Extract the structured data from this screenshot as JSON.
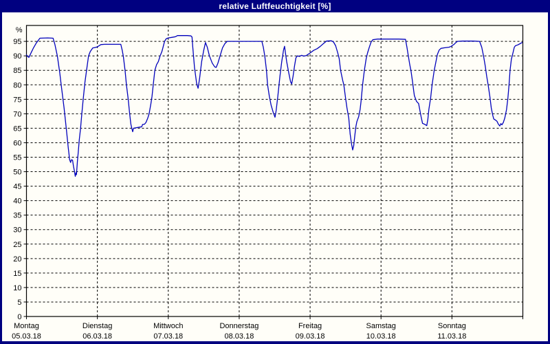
{
  "window": {
    "title": "relative Luftfeuchtigkeit [%]"
  },
  "colors": {
    "titlebar_bg": "#000080",
    "titlebar_text": "#ffffff",
    "window_border": "#000080",
    "content_bg": "#fffef8",
    "plot_border": "#000000",
    "gridline": "#000000",
    "series_line": "#0000bb"
  },
  "chart_data": {
    "type": "line",
    "title": "relative Luftfeuchtigkeit [%]",
    "ylabel": "%",
    "xlabel": "",
    "grid": "dashed",
    "legend": "none",
    "y_range": [
      0,
      100.5
    ],
    "y_tick_step": 5,
    "y_tick_labels": [
      "0",
      "5",
      "10",
      "15",
      "20",
      "25",
      "30",
      "35",
      "40",
      "45",
      "50",
      "55",
      "60",
      "65",
      "70",
      "75",
      "80",
      "85",
      "90",
      "95"
    ],
    "x_range_days": [
      0,
      7
    ],
    "x_axis": {
      "ticks": [
        {
          "day": "Montag",
          "date": "05.03.18"
        },
        {
          "day": "Dienstag",
          "date": "06.03.18"
        },
        {
          "day": "Mittwoch",
          "date": "07.03.18"
        },
        {
          "day": "Donnerstag",
          "date": "08.03.18"
        },
        {
          "day": "Freitag",
          "date": "09.03.18"
        },
        {
          "day": "Samstag",
          "date": "10.03.18"
        },
        {
          "day": "Sonntag",
          "date": "11.03.18"
        }
      ]
    },
    "series": [
      {
        "name": "relative Luftfeuchtigkeit",
        "unit": "%",
        "points": [
          [
            0.0,
            90.3
          ],
          [
            0.02,
            89.7
          ],
          [
            0.035,
            89.5
          ],
          [
            0.06,
            90.8
          ],
          [
            0.1,
            92.8
          ],
          [
            0.14,
            94.5
          ],
          [
            0.19,
            96.1
          ],
          [
            0.3,
            96.2
          ],
          [
            0.375,
            96.1
          ],
          [
            0.4,
            94
          ],
          [
            0.435,
            90
          ],
          [
            0.47,
            84
          ],
          [
            0.49,
            80
          ],
          [
            0.53,
            72
          ],
          [
            0.565,
            64
          ],
          [
            0.59,
            58
          ],
          [
            0.6,
            56
          ],
          [
            0.607,
            54.3
          ],
          [
            0.622,
            53.2
          ],
          [
            0.633,
            54.1
          ],
          [
            0.65,
            54.0
          ],
          [
            0.662,
            52
          ],
          [
            0.675,
            50.4
          ],
          [
            0.688,
            48.4
          ],
          [
            0.698,
            49.6
          ],
          [
            0.705,
            49.0
          ],
          [
            0.718,
            53.6
          ],
          [
            0.73,
            56.7
          ],
          [
            0.745,
            61
          ],
          [
            0.762,
            64.8
          ],
          [
            0.78,
            70
          ],
          [
            0.8,
            75
          ],
          [
            0.825,
            81
          ],
          [
            0.85,
            85.5
          ],
          [
            0.875,
            90
          ],
          [
            0.9,
            91.5
          ],
          [
            0.935,
            92.7
          ],
          [
            0.97,
            92.9
          ],
          [
            1.0,
            93.1
          ],
          [
            1.05,
            93.9
          ],
          [
            1.1,
            94.0
          ],
          [
            1.25,
            94.0
          ],
          [
            1.33,
            94.0
          ],
          [
            1.35,
            92
          ],
          [
            1.365,
            90
          ],
          [
            1.39,
            85
          ],
          [
            1.41,
            80
          ],
          [
            1.435,
            75
          ],
          [
            1.455,
            70
          ],
          [
            1.472,
            66.5
          ],
          [
            1.485,
            65.0
          ],
          [
            1.498,
            63.8
          ],
          [
            1.51,
            65.0
          ],
          [
            1.55,
            65.2
          ],
          [
            1.6,
            65.4
          ],
          [
            1.625,
            65.5
          ],
          [
            1.638,
            66.3
          ],
          [
            1.665,
            66.4
          ],
          [
            1.685,
            67.0
          ],
          [
            1.71,
            68.5
          ],
          [
            1.73,
            70
          ],
          [
            1.755,
            73.5
          ],
          [
            1.77,
            76
          ],
          [
            1.788,
            80
          ],
          [
            1.81,
            85
          ],
          [
            1.835,
            87
          ],
          [
            1.86,
            88
          ],
          [
            1.885,
            90
          ],
          [
            1.91,
            91.5
          ],
          [
            1.93,
            93.4
          ],
          [
            1.948,
            95
          ],
          [
            1.97,
            95.9
          ],
          [
            2.0,
            96.2
          ],
          [
            2.05,
            96.4
          ],
          [
            2.1,
            96.6
          ],
          [
            2.13,
            97.0
          ],
          [
            2.27,
            97.0
          ],
          [
            2.32,
            96.9
          ],
          [
            2.335,
            96.5
          ],
          [
            2.345,
            93
          ],
          [
            2.37,
            86
          ],
          [
            2.4,
            80.5
          ],
          [
            2.42,
            78.8
          ],
          [
            2.44,
            82
          ],
          [
            2.47,
            88
          ],
          [
            2.5,
            92
          ],
          [
            2.525,
            94.6
          ],
          [
            2.55,
            93
          ],
          [
            2.58,
            90
          ],
          [
            2.62,
            87.5
          ],
          [
            2.655,
            86.2
          ],
          [
            2.675,
            86.0
          ],
          [
            2.7,
            87.5
          ],
          [
            2.73,
            90
          ],
          [
            2.765,
            92.8
          ],
          [
            2.8,
            94.3
          ],
          [
            2.83,
            95.0
          ],
          [
            2.9,
            95.0
          ],
          [
            3.0,
            95.0
          ],
          [
            3.15,
            95.0
          ],
          [
            3.32,
            95.0
          ],
          [
            3.34,
            93
          ],
          [
            3.36,
            90
          ],
          [
            3.385,
            85
          ],
          [
            3.4,
            80
          ],
          [
            3.425,
            76
          ],
          [
            3.45,
            73
          ],
          [
            3.48,
            70.5
          ],
          [
            3.505,
            68.8
          ],
          [
            3.52,
            71
          ],
          [
            3.545,
            76
          ],
          [
            3.575,
            83
          ],
          [
            3.6,
            88
          ],
          [
            3.625,
            92
          ],
          [
            3.64,
            93.3
          ],
          [
            3.655,
            90.5
          ],
          [
            3.67,
            88
          ],
          [
            3.7,
            84
          ],
          [
            3.725,
            81
          ],
          [
            3.74,
            80.3
          ],
          [
            3.76,
            83
          ],
          [
            3.78,
            86.5
          ],
          [
            3.8,
            89.3
          ],
          [
            3.82,
            90.0
          ],
          [
            3.85,
            89.8
          ],
          [
            3.88,
            90.2
          ],
          [
            3.91,
            89.9
          ],
          [
            3.945,
            90.1
          ],
          [
            3.97,
            90.5
          ],
          [
            4.0,
            91.0
          ],
          [
            4.05,
            91.9
          ],
          [
            4.1,
            92.5
          ],
          [
            4.14,
            93.2
          ],
          [
            4.19,
            94.3
          ],
          [
            4.23,
            95.1
          ],
          [
            4.3,
            95.2
          ],
          [
            4.33,
            94.8
          ],
          [
            4.36,
            93.5
          ],
          [
            4.39,
            91
          ],
          [
            4.41,
            89
          ],
          [
            4.43,
            85
          ],
          [
            4.46,
            81.5
          ],
          [
            4.475,
            80
          ],
          [
            4.5,
            75.5
          ],
          [
            4.52,
            72
          ],
          [
            4.545,
            68.5
          ],
          [
            4.565,
            63
          ],
          [
            4.585,
            59.5
          ],
          [
            4.6,
            57.5
          ],
          [
            4.615,
            59
          ],
          [
            4.63,
            62.5
          ],
          [
            4.645,
            65.5
          ],
          [
            4.66,
            67.3
          ],
          [
            4.685,
            69
          ],
          [
            4.705,
            71.5
          ],
          [
            4.72,
            74.6
          ],
          [
            4.74,
            80
          ],
          [
            4.765,
            85
          ],
          [
            4.79,
            89
          ],
          [
            4.81,
            91
          ],
          [
            4.835,
            93
          ],
          [
            4.86,
            94.8
          ],
          [
            4.885,
            95.6
          ],
          [
            4.95,
            95.8
          ],
          [
            5.0,
            95.8
          ],
          [
            5.1,
            95.8
          ],
          [
            5.25,
            95.8
          ],
          [
            5.345,
            95.7
          ],
          [
            5.365,
            93
          ],
          [
            5.385,
            90
          ],
          [
            5.405,
            87
          ],
          [
            5.425,
            84.5
          ],
          [
            5.445,
            81
          ],
          [
            5.46,
            78
          ],
          [
            5.47,
            76.3
          ],
          [
            5.5,
            74.3
          ],
          [
            5.53,
            73.5
          ],
          [
            5.55,
            71
          ],
          [
            5.565,
            69
          ],
          [
            5.585,
            66.7
          ],
          [
            5.62,
            66.3
          ],
          [
            5.645,
            65.9
          ],
          [
            5.66,
            68
          ],
          [
            5.675,
            71.5
          ],
          [
            5.7,
            75.5
          ],
          [
            5.72,
            80
          ],
          [
            5.75,
            85
          ],
          [
            5.775,
            88
          ],
          [
            5.795,
            90.5
          ],
          [
            5.82,
            92
          ],
          [
            5.845,
            92.6
          ],
          [
            5.9,
            92.8
          ],
          [
            5.96,
            93.0
          ],
          [
            5.99,
            93.3
          ],
          [
            6.0,
            93.5
          ],
          [
            6.03,
            94.0
          ],
          [
            6.06,
            94.7
          ],
          [
            6.08,
            95.0
          ],
          [
            6.15,
            95.1
          ],
          [
            6.3,
            95.1
          ],
          [
            6.39,
            95.0
          ],
          [
            6.42,
            93
          ],
          [
            6.445,
            90
          ],
          [
            6.47,
            86.5
          ],
          [
            6.49,
            83
          ],
          [
            6.51,
            80
          ],
          [
            6.535,
            76
          ],
          [
            6.555,
            72
          ],
          [
            6.575,
            69.5
          ],
          [
            6.59,
            68.2
          ],
          [
            6.615,
            67.8
          ],
          [
            6.635,
            67.4
          ],
          [
            6.655,
            66.4
          ],
          [
            6.675,
            65.8
          ],
          [
            6.69,
            66.6
          ],
          [
            6.705,
            66.2
          ],
          [
            6.725,
            67
          ],
          [
            6.745,
            68.5
          ],
          [
            6.77,
            71.5
          ],
          [
            6.79,
            75.5
          ],
          [
            6.805,
            80
          ],
          [
            6.82,
            85
          ],
          [
            6.838,
            88.8
          ],
          [
            6.86,
            91
          ],
          [
            6.88,
            93
          ],
          [
            6.895,
            93.5
          ],
          [
            6.93,
            93.8
          ],
          [
            6.96,
            94.2
          ],
          [
            6.99,
            94.6
          ]
        ]
      }
    ]
  }
}
